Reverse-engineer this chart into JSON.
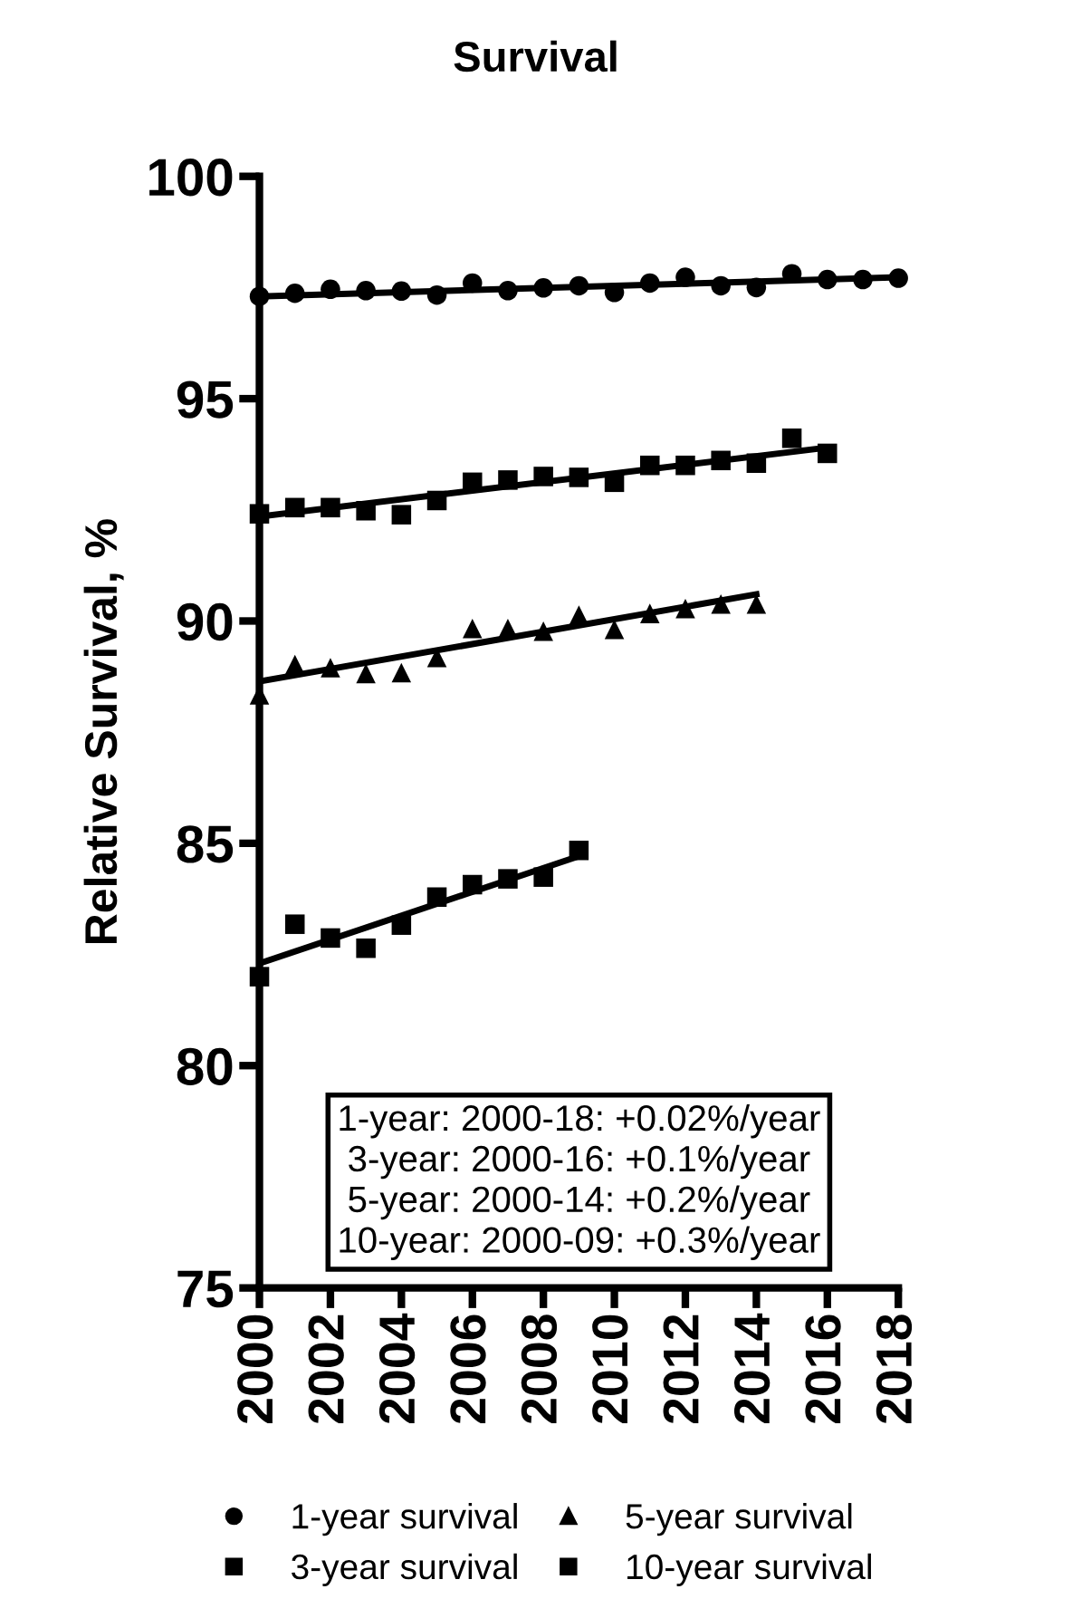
{
  "chart_data": {
    "type": "scatter",
    "title": "Survival",
    "ylabel": "Relative Survival, %",
    "xlim": [
      2000,
      2018
    ],
    "xticks": [
      2000,
      2002,
      2004,
      2006,
      2008,
      2010,
      2012,
      2014,
      2016,
      2018
    ],
    "ylim": [
      75,
      100
    ],
    "yticks": [
      75,
      80,
      85,
      90,
      95,
      100
    ],
    "grid": false,
    "legend": "bottom",
    "series": [
      {
        "name": "1-year survival",
        "color": "#000000",
        "marker": "circle",
        "x": [
          2000,
          2001,
          2002,
          2003,
          2004,
          2005,
          2006,
          2007,
          2008,
          2009,
          2010,
          2011,
          2012,
          2013,
          2014,
          2015,
          2016,
          2017,
          2018
        ],
        "values": [
          97.3,
          97.37,
          97.46,
          97.43,
          97.42,
          97.33,
          97.6,
          97.43,
          97.49,
          97.54,
          97.39,
          97.6,
          97.73,
          97.54,
          97.5,
          97.81,
          97.68,
          97.68,
          97.71
        ]
      },
      {
        "name": "3-year survival",
        "color": "#000000",
        "marker": "square",
        "x": [
          2000,
          2001,
          2002,
          2003,
          2004,
          2005,
          2006,
          2007,
          2008,
          2009,
          2010,
          2011,
          2012,
          2013,
          2014,
          2015,
          2016
        ],
        "values": [
          92.41,
          92.55,
          92.55,
          92.48,
          92.39,
          92.71,
          93.12,
          93.17,
          93.25,
          93.23,
          93.12,
          93.5,
          93.5,
          93.61,
          93.55,
          94.11,
          93.77
        ]
      },
      {
        "name": "5-year survival",
        "color": "#000000",
        "marker": "triangle",
        "x": [
          2000,
          2001,
          2002,
          2003,
          2004,
          2005,
          2006,
          2007,
          2008,
          2009,
          2010,
          2011,
          2012,
          2013,
          2014
        ],
        "values": [
          88.34,
          89.02,
          88.95,
          88.82,
          88.84,
          89.18,
          89.83,
          89.83,
          89.77,
          90.13,
          89.81,
          90.17,
          90.28,
          90.38,
          90.38
        ]
      },
      {
        "name": "10-year survival",
        "color": "#000000",
        "marker": "square",
        "x": [
          2000,
          2001,
          2002,
          2003,
          2004,
          2005,
          2006,
          2007,
          2008,
          2009
        ],
        "values": [
          82.0,
          83.18,
          82.87,
          82.64,
          83.16,
          83.79,
          84.07,
          84.2,
          84.24,
          84.84
        ]
      },
      {
        "type": "line",
        "color": "#000000",
        "line_style": "solid",
        "x": [
          2000,
          2018
        ],
        "values": [
          97.3,
          97.73
        ]
      },
      {
        "type": "line",
        "color": "#000000",
        "line_style": "solid",
        "x": [
          2000,
          2016
        ],
        "values": [
          92.35,
          93.9
        ]
      },
      {
        "type": "line",
        "color": "#000000",
        "line_style": "solid",
        "x": [
          2000,
          2014
        ],
        "values": [
          88.64,
          90.6
        ]
      },
      {
        "type": "line",
        "color": "#000000",
        "line_style": "solid",
        "x": [
          2000,
          2009
        ],
        "values": [
          82.3,
          84.71
        ]
      }
    ],
    "annotations": [
      "1-year: 2000-18: +0.02%/year",
      "3-year: 2000-16: +0.1%/year",
      "5-year: 2000-14: +0.2%/year",
      "10-year: 2000-09: +0.3%/year"
    ]
  }
}
